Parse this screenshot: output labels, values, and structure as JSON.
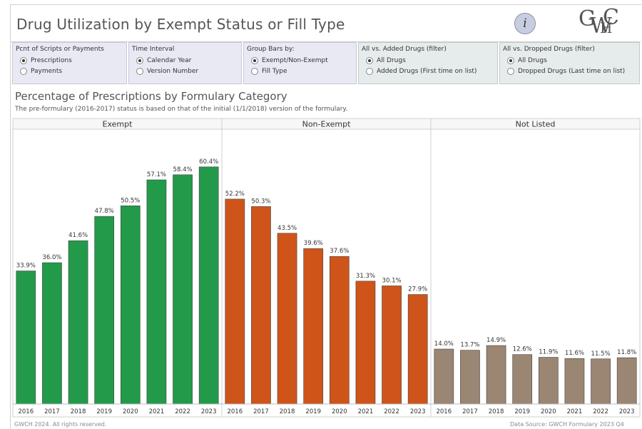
{
  "header": {
    "title": "Drug Utilization by Exempt Status or Fill Type",
    "info_label": "i",
    "logo_letters": [
      "G",
      "W",
      "C",
      "H"
    ]
  },
  "filters": [
    {
      "title": "Pcnt of Scripts or Payments",
      "options": [
        {
          "label": "Prescriptions",
          "selected": true
        },
        {
          "label": "Payments",
          "selected": false
        }
      ]
    },
    {
      "title": "Time Interval",
      "options": [
        {
          "label": "Calendar Year",
          "selected": true
        },
        {
          "label": "Version Number",
          "selected": false
        }
      ]
    },
    {
      "title": "Group Bars by:",
      "options": [
        {
          "label": "Exempt/Non-Exempt",
          "selected": true
        },
        {
          "label": "Fill Type",
          "selected": false
        }
      ]
    },
    {
      "title": "All vs. Added Drugs (filter)",
      "options": [
        {
          "label": "All Drugs",
          "selected": true
        },
        {
          "label": "Added Drugs (First time on list)",
          "selected": false
        }
      ]
    },
    {
      "title": "All vs. Dropped Drugs (filter)",
      "options": [
        {
          "label": "All Drugs",
          "selected": true
        },
        {
          "label": "Dropped Drugs (Last time on list)",
          "selected": false
        }
      ]
    }
  ],
  "chart_data": {
    "type": "bar",
    "title": "Percentage of Prescriptions by Formulary Category",
    "subtitle": "The pre-formulary (2016-2017) status is based on that of the initial  (1/1/2018) version of the formulary.",
    "categories": [
      "2016",
      "2017",
      "2018",
      "2019",
      "2020",
      "2021",
      "2022",
      "2023"
    ],
    "ylim": [
      0,
      70
    ],
    "grid": false,
    "value_suffix": "%",
    "panels": [
      {
        "name": "Exempt",
        "color": "#239a4a",
        "values": [
          33.9,
          36.0,
          41.6,
          47.8,
          50.5,
          57.1,
          58.4,
          60.4
        ]
      },
      {
        "name": "Non-Exempt",
        "color": "#cf5419",
        "values": [
          52.2,
          50.3,
          43.5,
          39.6,
          37.6,
          31.3,
          30.1,
          27.9
        ]
      },
      {
        "name": "Not Listed",
        "color": "#9b8573",
        "values": [
          14.0,
          13.7,
          14.9,
          12.6,
          11.9,
          11.6,
          11.5,
          11.8
        ]
      }
    ]
  },
  "footer": {
    "left": "GWCH 2024. All rights reserved.",
    "right": "Data Source: GWCH Formulary 2023 Q4"
  }
}
